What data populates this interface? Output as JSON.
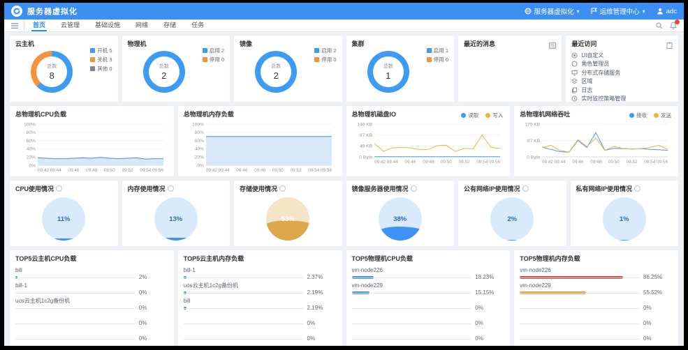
{
  "colors": {
    "topbar": "#3d8ef5",
    "accent": "#2d8cf0",
    "blue": "#3e9bf4",
    "orange": "#f5923e",
    "gray": "#7d8694",
    "red": "#e0493c",
    "amber": "#e6a23c"
  },
  "topbar": {
    "title": "服务器虚拟化",
    "env_selector": "服务器虚拟化",
    "center_selector": "运维管理中心",
    "username": "adc"
  },
  "menubar": {
    "tabs": [
      {
        "label": "首页",
        "active": true
      },
      {
        "label": "云管理",
        "active": false
      },
      {
        "label": "基础设施",
        "active": false
      },
      {
        "label": "网络",
        "active": false
      },
      {
        "label": "存储",
        "active": false
      },
      {
        "label": "任务",
        "active": false
      }
    ]
  },
  "row1": {
    "donut_cards": [
      {
        "title": "云主机",
        "total_label": "总数",
        "total": "8",
        "legend": [
          {
            "label": "开机",
            "value": "5",
            "color": "#3e9bf4"
          },
          {
            "label": "关机",
            "value": "3",
            "color": "#f5923e"
          },
          {
            "label": "其他",
            "value": "0",
            "color": "#7d8694"
          }
        ],
        "slices": [
          {
            "pct": 62.5,
            "color": "#3e9bf4"
          },
          {
            "pct": 37.5,
            "color": "#f5923e"
          }
        ]
      },
      {
        "title": "物理机",
        "total_label": "总数",
        "total": "2",
        "legend": [
          {
            "label": "启用",
            "value": "2",
            "color": "#3e9bf4"
          },
          {
            "label": "停用",
            "value": "0",
            "color": "#f5923e"
          }
        ],
        "slices": [
          {
            "pct": 100,
            "color": "#3e9bf4"
          }
        ]
      },
      {
        "title": "镜像",
        "total_label": "总数",
        "total": "2",
        "legend": [
          {
            "label": "启用",
            "value": "2",
            "color": "#3e9bf4"
          },
          {
            "label": "停用",
            "value": "0",
            "color": "#f5923e"
          }
        ],
        "slices": [
          {
            "pct": 100,
            "color": "#3e9bf4"
          }
        ]
      },
      {
        "title": "集群",
        "total_label": "总数",
        "total": "1",
        "legend": [
          {
            "label": "启用",
            "value": "1",
            "color": "#3e9bf4"
          },
          {
            "label": "停用",
            "value": "0",
            "color": "#f5923e"
          }
        ],
        "slices": [
          {
            "pct": 100,
            "color": "#3e9bf4"
          }
        ]
      }
    ],
    "message_card": {
      "title": "最近的消息"
    },
    "recent_card": {
      "title": "最近访问",
      "items": [
        {
          "icon": "target",
          "label": "UI自定义"
        },
        {
          "icon": "circle",
          "label": "角色管理员"
        },
        {
          "icon": "monitor",
          "label": "分布式存储服务"
        },
        {
          "icon": "layers",
          "label": "区域"
        },
        {
          "icon": "copy",
          "label": "日志"
        },
        {
          "icon": "clock",
          "label": "实时监控策略管理"
        }
      ]
    }
  },
  "row2": [
    {
      "title": "总物理机CPU负载",
      "y_labels": [
        "0%",
        "20%",
        "40%",
        "60%",
        "80%",
        "100%"
      ],
      "y_max": 100,
      "x_ticks": [
        "09:42",
        "09:44",
        "09:46",
        "09:48",
        "09:50",
        "09:52",
        "09:54",
        "09:56"
      ],
      "series": [
        {
          "name": "CPU",
          "color": "#4a90d9",
          "fill": "#d7e8fa",
          "values": [
            18,
            17,
            16,
            16,
            17,
            18,
            17,
            19,
            17,
            16,
            17,
            18,
            15,
            16,
            16
          ]
        }
      ]
    },
    {
      "title": "总物理机内存负载",
      "y_labels": [
        "0%",
        "20%",
        "40%",
        "60%",
        "80%",
        "100%"
      ],
      "y_max": 100,
      "x_ticks": [
        "09:42",
        "09:44",
        "09:46",
        "09:48",
        "09:50",
        "09:52",
        "09:54",
        "09:56"
      ],
      "series": [
        {
          "name": "内存",
          "color": "#4a90d9",
          "fill": "#d7e8fa",
          "values": [
            70,
            70,
            70,
            70,
            70,
            70,
            70,
            70,
            70,
            70,
            70,
            70,
            70,
            70,
            70
          ]
        }
      ]
    },
    {
      "title": "总物理机磁盘IO",
      "y_labels": [
        "0 Byte",
        "49 KB",
        "97 KB",
        "146 KB"
      ],
      "y_max": 146,
      "x_ticks": [
        "09:42",
        "09:44",
        "09:46",
        "09:48",
        "09:50",
        "09:52",
        "09:54",
        "09:56"
      ],
      "legend": [
        {
          "name": "读取",
          "color": "#3e9bf4"
        },
        {
          "name": "写入",
          "color": "#eeb432"
        }
      ],
      "series": [
        {
          "name": "读取",
          "color": "#3e9bf4",
          "values": [
            0.8,
            0.8,
            0.8,
            0.8,
            0.8,
            0.8,
            0.8,
            0.8,
            0.8,
            0.8,
            0.8,
            0.8,
            0.8,
            0.8,
            0.8
          ]
        },
        {
          "name": "写入",
          "color": "#eeb432",
          "values": [
            60,
            25,
            40,
            42,
            40,
            33,
            33,
            50,
            52,
            24,
            38,
            36,
            97,
            42,
            38
          ]
        }
      ]
    },
    {
      "title": "总物理机网络吞吐",
      "y_labels": [
        "0 Byte",
        "87 KB",
        "175 KB"
      ],
      "y_max": 175,
      "x_ticks": [
        "09:42",
        "09:44",
        "09:46",
        "09:48",
        "09:50",
        "09:52",
        "09:54",
        "09:56"
      ],
      "legend": [
        {
          "name": "接收",
          "color": "#3e9bf4"
        },
        {
          "name": "发送",
          "color": "#eeb432"
        }
      ],
      "series": [
        {
          "name": "接收",
          "color": "#3e9bf4",
          "values": [
            52,
            40,
            28,
            25,
            88,
            50,
            130,
            35,
            45,
            44,
            42,
            44,
            40,
            38,
            35
          ]
        },
        {
          "name": "发送",
          "color": "#eeb432",
          "values": [
            50,
            62,
            35,
            25,
            92,
            55,
            100,
            35,
            55,
            45,
            42,
            44,
            50,
            62,
            40
          ]
        }
      ]
    }
  ],
  "row3": [
    {
      "title": "CPU使用情况",
      "percent": "11%",
      "value": 11,
      "theme": "blue"
    },
    {
      "title": "内存使用情况",
      "percent": "13%",
      "value": 13,
      "theme": "blue"
    },
    {
      "title": "存储使用情况",
      "percent": "53%",
      "value": 53,
      "theme": "orange"
    },
    {
      "title": "镜像服务器使用情况",
      "percent": "38%",
      "value": 38,
      "theme": "blue"
    },
    {
      "title": "公有网络IP使用情况",
      "percent": "2%",
      "value": 2,
      "theme": "blue"
    },
    {
      "title": "私有网络IP使用情况",
      "percent": "1%",
      "value": 1,
      "theme": "blue"
    }
  ],
  "row4": [
    {
      "title": "TOP5云主机CPU负载",
      "items": [
        {
          "name": "bill",
          "pct_label": "2%",
          "pct": 2,
          "color": "#4a90e2"
        },
        {
          "name": "bill-1",
          "pct_label": "0%",
          "pct": 0,
          "color": "#4a90e2"
        },
        {
          "name": "uos云主机1c2g备份机",
          "pct_label": "0%",
          "pct": 0,
          "color": "#4a90e2"
        },
        {
          "name": "",
          "pct_label": "0%",
          "pct": 0,
          "color": "#4a90e2"
        },
        {
          "name": "",
          "pct_label": "0%",
          "pct": 0,
          "color": "#4a90e2"
        }
      ]
    },
    {
      "title": "TOP5云主机内存负载",
      "items": [
        {
          "name": "bill-1",
          "pct_label": "2.37%",
          "pct": 2.4,
          "color": "#4a90e2"
        },
        {
          "name": "uos云主机1c2g备份机",
          "pct_label": "2.19%",
          "pct": 2.2,
          "color": "#4a90e2"
        },
        {
          "name": "bill",
          "pct_label": "2.19%",
          "pct": 2.2,
          "color": "#4a90e2"
        },
        {
          "name": "",
          "pct_label": "0%",
          "pct": 0,
          "color": "#4a90e2"
        },
        {
          "name": "",
          "pct_label": "0%",
          "pct": 0,
          "color": "#4a90e2"
        }
      ]
    },
    {
      "title": "TOP5物理机CPU负载",
      "items": [
        {
          "name": "vm-node226",
          "pct_label": "18.23%",
          "pct": 18.23,
          "color": "#4a90e2"
        },
        {
          "name": "vm-node229",
          "pct_label": "15.15%",
          "pct": 15.15,
          "color": "#4a90e2"
        },
        {
          "name": "",
          "pct_label": "0%",
          "pct": 0,
          "color": "#4a90e2"
        },
        {
          "name": "",
          "pct_label": "0%",
          "pct": 0,
          "color": "#4a90e2"
        },
        {
          "name": "",
          "pct_label": "0%",
          "pct": 0,
          "color": "#4a90e2"
        }
      ]
    },
    {
      "title": "TOP5物理机内存负载",
      "items": [
        {
          "name": "vm-node226",
          "pct_label": "86.25%",
          "pct": 86.25,
          "color": "#e0493c"
        },
        {
          "name": "vm-node229",
          "pct_label": "55.52%",
          "pct": 55.52,
          "color": "#e6a23c"
        },
        {
          "name": "",
          "pct_label": "0%",
          "pct": 0,
          "color": "#4a90e2"
        },
        {
          "name": "",
          "pct_label": "0%",
          "pct": 0,
          "color": "#4a90e2"
        },
        {
          "name": "",
          "pct_label": "0%",
          "pct": 0,
          "color": "#4a90e2"
        }
      ]
    }
  ]
}
